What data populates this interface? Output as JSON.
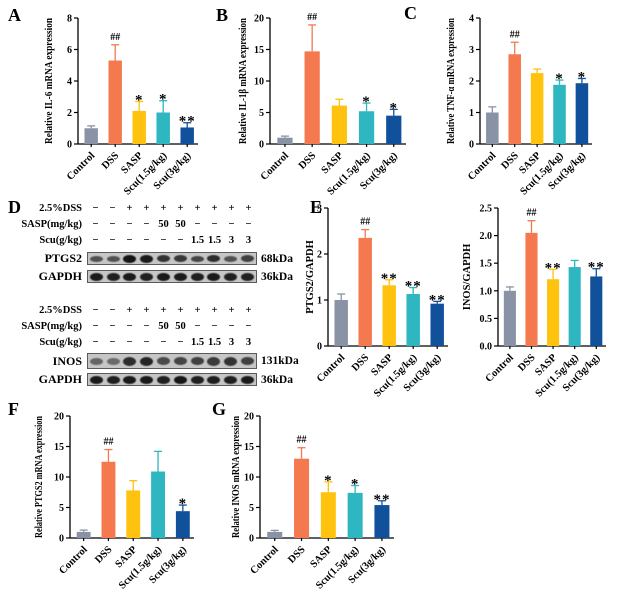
{
  "panels": {
    "A": "A",
    "B": "B",
    "C": "C",
    "D": "D",
    "E": "E",
    "F": "F",
    "G": "G"
  },
  "bar_colors": [
    "#8A93A6",
    "#F4794E",
    "#FFC20E",
    "#2EB6C1",
    "#11519C"
  ],
  "axis_color": "#000000",
  "categories": [
    "Control",
    "DSS",
    "SASP",
    "Scu(1.5g/kg)",
    "Scu(3g/kg)"
  ],
  "chart_data": [
    {
      "id": "A",
      "type": "bar",
      "ylabel": "Relative IL-6 mRNA expression",
      "ylim": [
        0,
        8
      ],
      "yticks": [
        "0",
        "2",
        "4",
        "6",
        "8"
      ],
      "categories": [
        "Control",
        "DSS",
        "SASP",
        "Scu(1.5g/kg)",
        "Scu(3g/kg)"
      ],
      "values": [
        1.0,
        5.3,
        2.1,
        2.0,
        1.05
      ],
      "errors": [
        0.15,
        1.0,
        0.6,
        0.75,
        0.3
      ],
      "sig": [
        "",
        "##",
        "*",
        "*",
        "**"
      ]
    },
    {
      "id": "B",
      "type": "bar",
      "ylabel": "Relative IL-1β mRNA expression",
      "ylim": [
        0,
        20
      ],
      "yticks": [
        "0",
        "5",
        "10",
        "15",
        "20"
      ],
      "categories": [
        "Control",
        "DSS",
        "SASP",
        "Scu(1.5g/kg)",
        "Scu(3g/kg)"
      ],
      "values": [
        1.0,
        14.7,
        6.1,
        5.2,
        4.5
      ],
      "errors": [
        0.25,
        4.2,
        1.0,
        1.3,
        1.0
      ],
      "sig": [
        "",
        "##",
        "",
        "*",
        "*"
      ]
    },
    {
      "id": "C",
      "type": "bar",
      "ylabel": "Relative TNF-α mRNA expression",
      "ylim": [
        0,
        4
      ],
      "yticks": [
        "0",
        "1",
        "2",
        "3",
        "4"
      ],
      "categories": [
        "Control",
        "DSS",
        "SASP",
        "Scu(1.5g/kg)",
        "Scu(3g/kg)"
      ],
      "values": [
        1.0,
        2.85,
        2.25,
        1.88,
        1.93
      ],
      "errors": [
        0.18,
        0.38,
        0.13,
        0.15,
        0.15
      ],
      "sig": [
        "",
        "##",
        "",
        "*",
        "*"
      ]
    },
    {
      "id": "E1",
      "type": "bar",
      "ylabel": "PTGS2/GAPDH",
      "ylim": [
        0,
        3
      ],
      "yticks": [
        "0",
        "1",
        "2",
        "3"
      ],
      "categories": [
        "Control",
        "DSS",
        "SASP",
        "Scu(1.5g/kg)",
        "Scu(3g/kg)"
      ],
      "values": [
        1.0,
        2.35,
        1.32,
        1.13,
        0.92
      ],
      "errors": [
        0.13,
        0.18,
        0.12,
        0.14,
        0.05
      ],
      "sig": [
        "",
        "##",
        "**",
        "**",
        "**"
      ]
    },
    {
      "id": "E2",
      "type": "bar",
      "ylabel": "INOS/GAPDH",
      "ylim": [
        0,
        2.5
      ],
      "yticks": [
        "0.0",
        "0.5",
        "1.0",
        "1.5",
        "2.0",
        "2.5"
      ],
      "categories": [
        "Control",
        "DSS",
        "SASP",
        "Scu(1.5g/kg)",
        "Scu(3g/kg)"
      ],
      "values": [
        1.0,
        2.05,
        1.21,
        1.43,
        1.26
      ],
      "errors": [
        0.07,
        0.22,
        0.18,
        0.12,
        0.14
      ],
      "sig": [
        "",
        "##",
        "**",
        "",
        "**"
      ]
    },
    {
      "id": "F",
      "type": "bar",
      "ylabel": "Relative PTGS2 mRNA expression",
      "ylim": [
        0,
        20
      ],
      "yticks": [
        "0",
        "5",
        "10",
        "15",
        "20"
      ],
      "categories": [
        "Control",
        "DSS",
        "SASP",
        "Scu(1.5g/kg)",
        "Scu(3g/kg)"
      ],
      "values": [
        1.0,
        12.5,
        7.8,
        10.9,
        4.4
      ],
      "errors": [
        0.3,
        2.0,
        1.6,
        3.3,
        1.0
      ],
      "sig": [
        "",
        "##",
        "",
        "",
        "*"
      ]
    },
    {
      "id": "G",
      "type": "bar",
      "ylabel": "Relative INOS mRNA expression",
      "ylim": [
        0,
        20
      ],
      "yticks": [
        "0",
        "5",
        "10",
        "15",
        "20"
      ],
      "categories": [
        "Control",
        "DSS",
        "SASP",
        "Scu(1.5g/kg)",
        "Scu(3g/kg)"
      ],
      "values": [
        1.0,
        13.0,
        7.5,
        7.4,
        5.4
      ],
      "errors": [
        0.25,
        1.8,
        1.7,
        1.2,
        0.7
      ],
      "sig": [
        "",
        "##",
        "*",
        "*",
        "**"
      ]
    }
  ],
  "western_blot": {
    "dose_rows": [
      {
        "label": "2.5%DSS",
        "values": [
          "−",
          "−",
          "+",
          "+",
          "+",
          "+",
          "+",
          "+",
          "+",
          "+"
        ]
      },
      {
        "label": "SASP(mg/kg)",
        "values": [
          "−",
          "−",
          "−",
          "−",
          "50",
          "50",
          "−",
          "−",
          "−",
          "−"
        ]
      },
      {
        "label": "Scu(g/kg)",
        "values": [
          "−",
          "−",
          "−",
          "−",
          "−",
          "−",
          "1.5",
          "1.5",
          "3",
          "3"
        ]
      }
    ],
    "groups": [
      {
        "blots": [
          {
            "label": "PTGS2",
            "kda": "68kDa",
            "bands": [
              0.5,
              0.5,
              1.0,
              0.95,
              0.75,
              0.7,
              0.6,
              0.8,
              0.5,
              0.65
            ]
          },
          {
            "label": "GAPDH",
            "kda": "36kDa",
            "bands": [
              0.95,
              0.9,
              0.95,
              0.9,
              0.95,
              0.95,
              0.9,
              0.95,
              0.9,
              0.9
            ]
          }
        ]
      },
      {
        "blots": [
          {
            "label": "INOS",
            "kda": "131kDa",
            "bands": [
              0.35,
              0.3,
              0.8,
              0.85,
              0.55,
              0.6,
              0.65,
              0.7,
              0.75,
              0.65
            ]
          },
          {
            "label": "GAPDH",
            "kda": "36kDa",
            "bands": [
              0.95,
              0.9,
              0.95,
              0.95,
              0.9,
              0.98,
              0.9,
              0.92,
              0.9,
              0.95
            ]
          }
        ]
      }
    ]
  }
}
